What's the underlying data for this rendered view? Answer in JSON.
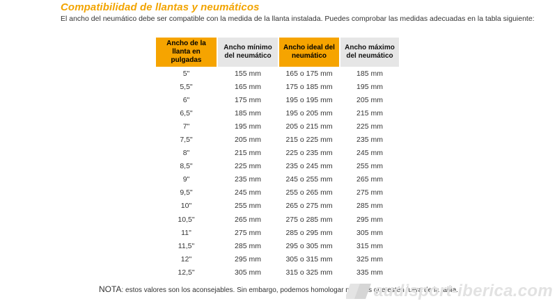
{
  "header": {
    "title": "Compatibilidad de llantas y neumáticos",
    "subtitle": "El ancho del neumático debe ser compatible con la medida de la llanta instalada. Puedes comprobar las medidas adecuadas en la tabla siguiente:"
  },
  "table": {
    "headers": [
      "Ancho de la llanta en pulgadas",
      "Ancho mínimo del neumático",
      "Ancho ideal del neumático",
      "Ancho máximo del neumático"
    ],
    "rows": [
      [
        "5\"",
        "155 mm",
        "165 o 175 mm",
        "185 mm"
      ],
      [
        "5,5\"",
        "165 mm",
        "175 o 185 mm",
        "195 mm"
      ],
      [
        "6\"",
        "175 mm",
        "195 o 195 mm",
        "205 mm"
      ],
      [
        "6,5\"",
        "185 mm",
        "195 o 205 mm",
        "215 mm"
      ],
      [
        "7\"",
        "195 mm",
        "205 o 215 mm",
        "225 mm"
      ],
      [
        "7,5\"",
        "205 mm",
        "215 o 225 mm",
        "235 mm"
      ],
      [
        "8\"",
        "215 mm",
        "225 o 235 mm",
        "245 mm"
      ],
      [
        "8,5\"",
        "225 mm",
        "235 o 245 mm",
        "255 mm"
      ],
      [
        "9\"",
        "235 mm",
        "245 o 255 mm",
        "265 mm"
      ],
      [
        "9,5\"",
        "245 mm",
        "255 o 265 mm",
        "275 mm"
      ],
      [
        "10\"",
        "255 mm",
        "265 o 275 mm",
        "285 mm"
      ],
      [
        "10,5\"",
        "265 mm",
        "275 o 285 mm",
        "295 mm"
      ],
      [
        "11\"",
        "275 mm",
        "285 o 295 mm",
        "305 mm"
      ],
      [
        "11,5\"",
        "285 mm",
        "295 o 305 mm",
        "315 mm"
      ],
      [
        "12\"",
        "295 mm",
        "305 o 315 mm",
        "325 mm"
      ],
      [
        "12,5\"",
        "305 mm",
        "315 o 325 mm",
        "335 mm"
      ]
    ]
  },
  "note": {
    "label": "NOTA",
    "text": ": estos valores son los aconsejables. Sin embargo, podemos homologar medidas que estén fuera de la tabla."
  },
  "watermark": {
    "text": "audisport-iberica.com",
    "icon": "audisport-logo-icon"
  },
  "colors": {
    "title": "#f2a400",
    "header_highlight": "#f6a400",
    "header_gray": "#e6e6e6",
    "watermark": "#e2e2e2"
  }
}
